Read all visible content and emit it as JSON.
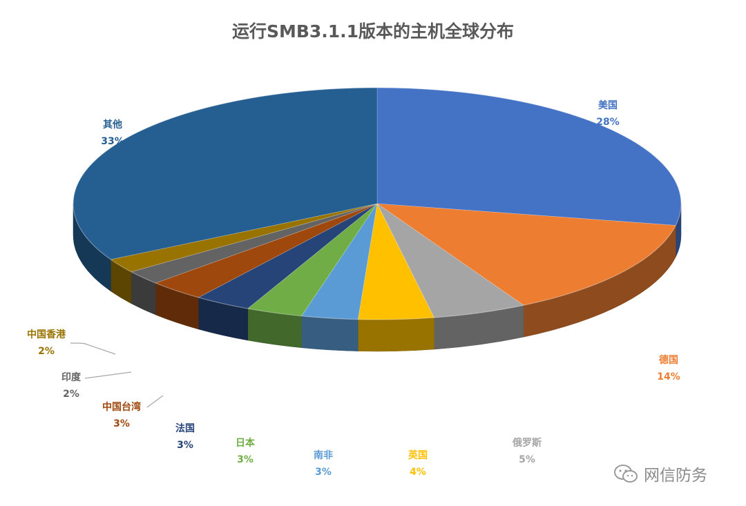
{
  "chart_data": {
    "type": "pie",
    "title": "运行SMB3.1.1版本的主机全球分布",
    "slices": [
      {
        "label": "美国",
        "value": 28,
        "pct_label": "28%",
        "color": "#4472C4",
        "label_color": "#4472C4"
      },
      {
        "label": "德国",
        "value": 14,
        "pct_label": "14%",
        "color": "#ED7D31",
        "label_color": "#ED7D31"
      },
      {
        "label": "俄罗斯",
        "value": 5,
        "pct_label": "5%",
        "color": "#A5A5A5",
        "label_color": "#A5A5A5"
      },
      {
        "label": "英国",
        "value": 4,
        "pct_label": "4%",
        "color": "#FFC000",
        "label_color": "#FFC000"
      },
      {
        "label": "南非",
        "value": 3,
        "pct_label": "3%",
        "color": "#5B9BD5",
        "label_color": "#5B9BD5"
      },
      {
        "label": "日本",
        "value": 3,
        "pct_label": "3%",
        "color": "#70AD47",
        "label_color": "#70AD47"
      },
      {
        "label": "法国",
        "value": 3,
        "pct_label": "3%",
        "color": "#264478",
        "label_color": "#264478"
      },
      {
        "label": "中国台湾",
        "value": 3,
        "pct_label": "3%",
        "color": "#9E480E",
        "label_color": "#9E480E"
      },
      {
        "label": "印度",
        "value": 2,
        "pct_label": "2%",
        "color": "#636363",
        "label_color": "#636363"
      },
      {
        "label": "中国香港",
        "value": 2,
        "pct_label": "2%",
        "color": "#997300",
        "label_color": "#997300"
      },
      {
        "label": "其他",
        "value": 33,
        "pct_label": "33%",
        "color": "#255E91",
        "label_color": "#255E91"
      }
    ],
    "legend": "none",
    "data_labels": "category-and-percent"
  },
  "watermark": {
    "text": "网信防务",
    "icon": "wechat-icon"
  }
}
